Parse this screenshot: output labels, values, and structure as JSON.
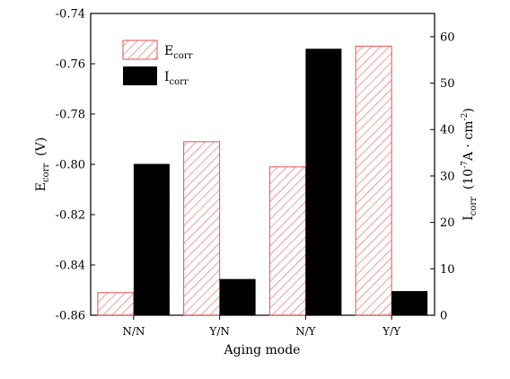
{
  "chart_data": {
    "type": "bar",
    "categories": [
      "N/N",
      "Y/N",
      "N/Y",
      "Y/Y"
    ],
    "series": [
      {
        "name": "Ecorr",
        "axis": "left",
        "values": [
          -0.851,
          -0.791,
          -0.801,
          -0.753
        ],
        "fill": "hatched",
        "color": "#e8514f"
      },
      {
        "name": "Icorr",
        "axis": "right",
        "values": [
          32.6,
          7.8,
          57.4,
          5.2
        ],
        "fill": "solid",
        "color": "#000000"
      }
    ],
    "xlabel": "Aging mode",
    "ylabel_left": {
      "main": "E",
      "sub": "corr",
      "unit": "(V)"
    },
    "ylabel_right": {
      "main": "I",
      "sub": "corr",
      "unit_pre": "(10",
      "unit_exp1": "-7",
      "unit_mid": "A · cm",
      "unit_exp2": "-2",
      "unit_post": ")"
    },
    "ylim_left": [
      -0.86,
      -0.74
    ],
    "ylim_right": [
      0,
      65
    ],
    "yticks_left": [
      "-0.74",
      "-0.76",
      "-0.78",
      "-0.80",
      "-0.82",
      "-0.84",
      "-0.86"
    ],
    "yticks_left_values": [
      -0.74,
      -0.76,
      -0.78,
      -0.8,
      -0.82,
      -0.84,
      -0.86
    ],
    "yticks_right": [
      "0",
      "10",
      "20",
      "30",
      "40",
      "50",
      "60"
    ],
    "yticks_right_values": [
      0,
      10,
      20,
      30,
      40,
      50,
      60
    ],
    "legend": {
      "placement": "top-left",
      "entries": [
        {
          "main": "E",
          "sub": "corr",
          "style": "hatched"
        },
        {
          "main": "I",
          "sub": "corr",
          "style": "solid"
        }
      ]
    },
    "grid": false
  }
}
